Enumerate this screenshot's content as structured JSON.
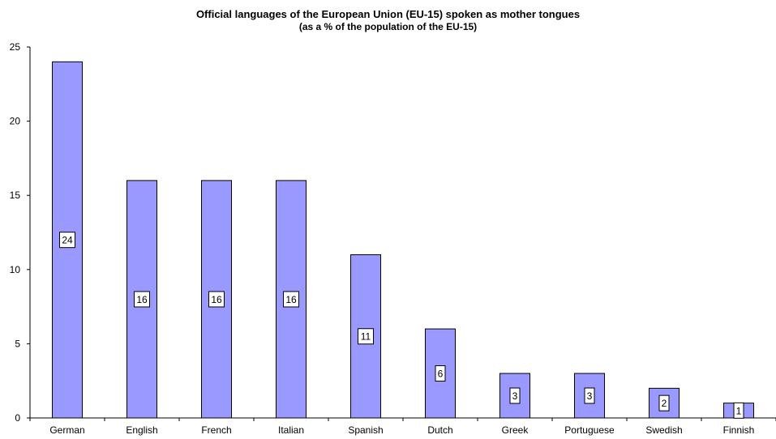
{
  "chart_data": {
    "type": "bar",
    "title": "Official languages of the European Union (EU-15) spoken as mother tongues",
    "subtitle": "(as a % of the population of the EU-15)",
    "categories": [
      "German",
      "English",
      "French",
      "Italian",
      "Spanish",
      "Dutch",
      "Greek",
      "Portuguese",
      "Swedish",
      "Finnish"
    ],
    "values": [
      24,
      16,
      16,
      16,
      11,
      6,
      3,
      3,
      2,
      1
    ],
    "data_labels": [
      "24",
      "16",
      "16",
      "16",
      "11",
      "6",
      "3",
      "3",
      "2",
      "1"
    ],
    "ylim": [
      0,
      25
    ],
    "yticks": [
      0,
      5,
      10,
      15,
      20,
      25
    ],
    "xlabel": "",
    "ylabel": "",
    "grid": false,
    "colors": {
      "bar_fill": "#9999ff",
      "bar_stroke": "#000000",
      "axis": "#000000",
      "label_box": "#ffffff"
    }
  }
}
